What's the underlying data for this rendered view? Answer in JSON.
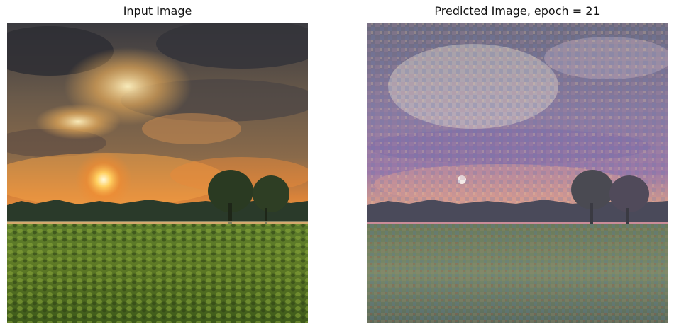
{
  "figure": {
    "panels": [
      {
        "title": "Input Image"
      },
      {
        "title": "Predicted Image, epoch = 21"
      }
    ]
  }
}
